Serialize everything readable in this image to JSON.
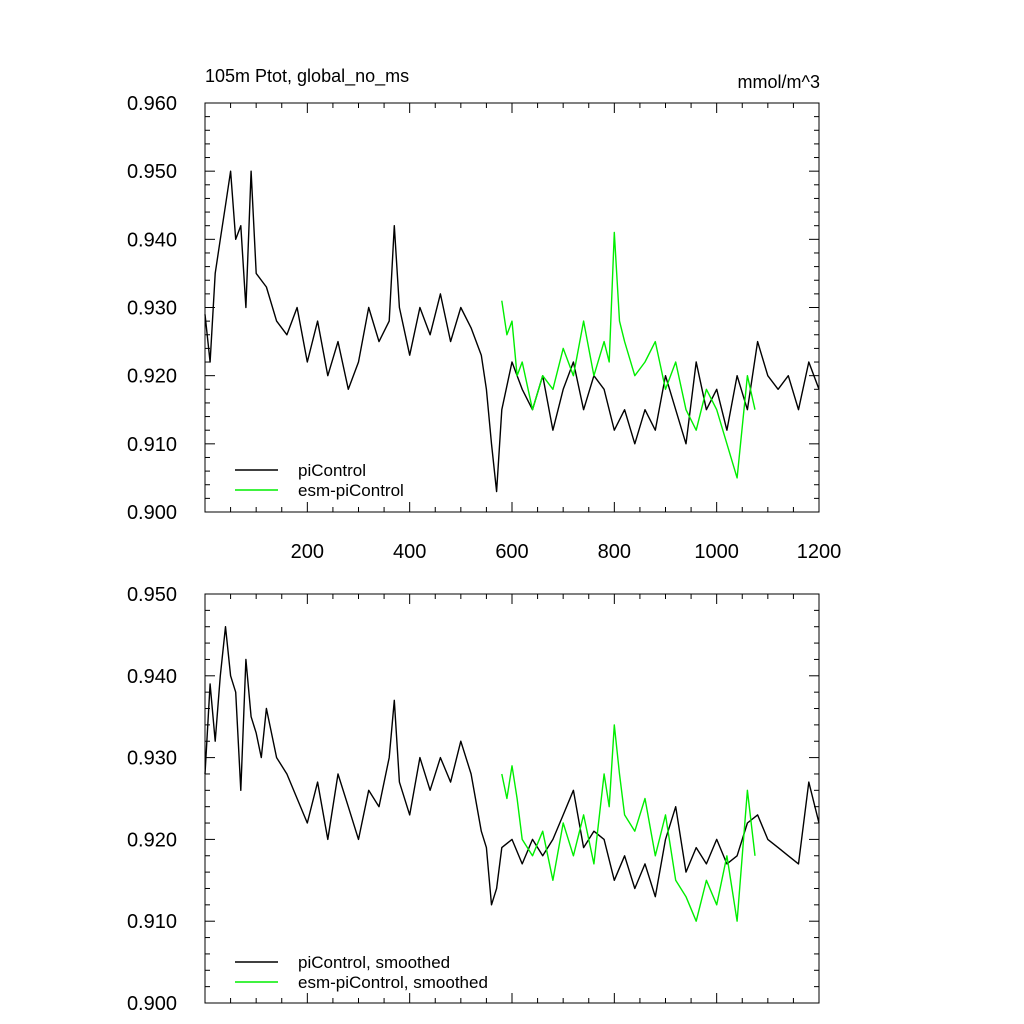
{
  "chart_data": [
    {
      "type": "line",
      "title": "105m Ptot, global_no_ms",
      "units": "mmol/m^3",
      "xlim": [
        0,
        1200
      ],
      "ylim": [
        0.9,
        0.96
      ],
      "x_ticks": [
        200,
        400,
        600,
        800,
        1000,
        1200
      ],
      "x_tick_labels": [
        "200",
        "400",
        "600",
        "800",
        "1000",
        "1200"
      ],
      "y_ticks": [
        0.9,
        0.91,
        0.92,
        0.93,
        0.94,
        0.95,
        0.96
      ],
      "y_tick_labels": [
        "0.900",
        "0.910",
        "0.920",
        "0.930",
        "0.940",
        "0.950",
        "0.960"
      ],
      "grid": false,
      "legend_position": "bottom-left",
      "series": [
        {
          "name": "piControl",
          "color": "#000000",
          "x": [
            0,
            10,
            20,
            30,
            40,
            50,
            60,
            70,
            80,
            90,
            100,
            120,
            140,
            160,
            180,
            200,
            220,
            240,
            260,
            280,
            300,
            320,
            340,
            360,
            370,
            380,
            400,
            420,
            440,
            460,
            480,
            500,
            520,
            540,
            550,
            560,
            570,
            580,
            600,
            620,
            640,
            660,
            680,
            700,
            720,
            740,
            760,
            780,
            800,
            820,
            840,
            860,
            880,
            900,
            920,
            940,
            960,
            980,
            1000,
            1020,
            1040,
            1060,
            1080,
            1100,
            1120,
            1140,
            1160,
            1180,
            1200
          ],
          "y": [
            0.929,
            0.922,
            0.935,
            0.94,
            0.945,
            0.95,
            0.94,
            0.942,
            0.93,
            0.95,
            0.935,
            0.933,
            0.928,
            0.926,
            0.93,
            0.922,
            0.928,
            0.92,
            0.925,
            0.918,
            0.922,
            0.93,
            0.925,
            0.928,
            0.942,
            0.93,
            0.923,
            0.93,
            0.926,
            0.932,
            0.925,
            0.93,
            0.927,
            0.923,
            0.918,
            0.91,
            0.903,
            0.915,
            0.922,
            0.918,
            0.915,
            0.92,
            0.912,
            0.918,
            0.922,
            0.915,
            0.92,
            0.918,
            0.912,
            0.915,
            0.91,
            0.915,
            0.912,
            0.92,
            0.915,
            0.91,
            0.922,
            0.915,
            0.918,
            0.912,
            0.92,
            0.915,
            0.925,
            0.92,
            0.918,
            0.92,
            0.915,
            0.922,
            0.918
          ]
        },
        {
          "name": "esm-piControl",
          "color": "#00ee00",
          "x": [
            580,
            590,
            600,
            610,
            620,
            640,
            660,
            680,
            700,
            720,
            740,
            760,
            780,
            790,
            800,
            810,
            820,
            840,
            860,
            880,
            900,
            920,
            940,
            960,
            980,
            1000,
            1020,
            1040,
            1060,
            1075
          ],
          "y": [
            0.931,
            0.926,
            0.928,
            0.92,
            0.922,
            0.915,
            0.92,
            0.918,
            0.924,
            0.92,
            0.928,
            0.92,
            0.925,
            0.922,
            0.941,
            0.928,
            0.925,
            0.92,
            0.922,
            0.925,
            0.918,
            0.922,
            0.915,
            0.912,
            0.918,
            0.915,
            0.91,
            0.905,
            0.92,
            0.915
          ]
        }
      ]
    },
    {
      "type": "line",
      "xlim": [
        0,
        1200
      ],
      "ylim": [
        0.9,
        0.95
      ],
      "y_ticks": [
        0.9,
        0.91,
        0.92,
        0.93,
        0.94,
        0.95
      ],
      "y_tick_labels": [
        "0.900",
        "0.910",
        "0.920",
        "0.930",
        "0.940",
        "0.950"
      ],
      "grid": false,
      "legend_position": "bottom-left",
      "series": [
        {
          "name": "piControl, smoothed",
          "color": "#000000",
          "x": [
            0,
            10,
            20,
            30,
            40,
            50,
            60,
            70,
            80,
            90,
            100,
            110,
            120,
            140,
            160,
            180,
            200,
            220,
            240,
            260,
            280,
            300,
            320,
            340,
            360,
            370,
            380,
            400,
            420,
            440,
            460,
            480,
            500,
            520,
            540,
            550,
            560,
            570,
            580,
            600,
            620,
            640,
            660,
            680,
            700,
            720,
            740,
            760,
            780,
            800,
            820,
            840,
            860,
            880,
            900,
            920,
            940,
            960,
            980,
            1000,
            1020,
            1040,
            1060,
            1080,
            1100,
            1120,
            1140,
            1160,
            1180,
            1200
          ],
          "y": [
            0.928,
            0.939,
            0.932,
            0.94,
            0.946,
            0.94,
            0.938,
            0.926,
            0.942,
            0.935,
            0.933,
            0.93,
            0.936,
            0.93,
            0.928,
            0.925,
            0.922,
            0.927,
            0.92,
            0.928,
            0.924,
            0.92,
            0.926,
            0.924,
            0.93,
            0.937,
            0.927,
            0.923,
            0.93,
            0.926,
            0.93,
            0.927,
            0.932,
            0.928,
            0.921,
            0.919,
            0.912,
            0.914,
            0.919,
            0.92,
            0.917,
            0.92,
            0.918,
            0.92,
            0.923,
            0.926,
            0.919,
            0.921,
            0.92,
            0.915,
            0.918,
            0.914,
            0.917,
            0.913,
            0.92,
            0.924,
            0.916,
            0.919,
            0.917,
            0.92,
            0.917,
            0.918,
            0.922,
            0.923,
            0.92,
            0.919,
            0.918,
            0.917,
            0.927,
            0.922
          ]
        },
        {
          "name": "esm-piControl, smoothed",
          "color": "#00ee00",
          "x": [
            580,
            590,
            600,
            610,
            620,
            640,
            660,
            680,
            700,
            720,
            740,
            760,
            780,
            790,
            800,
            810,
            820,
            840,
            860,
            880,
            900,
            920,
            940,
            960,
            980,
            1000,
            1020,
            1040,
            1060,
            1075
          ],
          "y": [
            0.928,
            0.925,
            0.929,
            0.925,
            0.92,
            0.918,
            0.921,
            0.915,
            0.922,
            0.918,
            0.923,
            0.917,
            0.928,
            0.924,
            0.934,
            0.928,
            0.923,
            0.921,
            0.925,
            0.918,
            0.923,
            0.915,
            0.913,
            0.91,
            0.915,
            0.912,
            0.918,
            0.91,
            0.926,
            0.918
          ]
        }
      ]
    }
  ]
}
